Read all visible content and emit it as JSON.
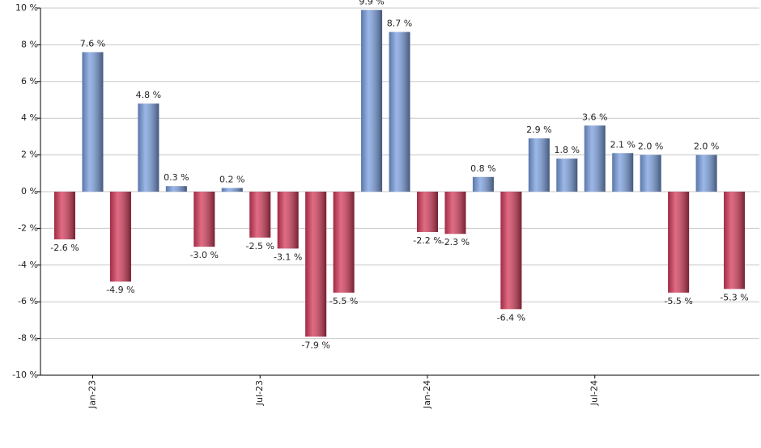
{
  "chart_data": {
    "type": "bar",
    "categories": [
      null,
      "Jan-23",
      null,
      null,
      null,
      null,
      null,
      "Jul-23",
      null,
      null,
      null,
      null,
      null,
      "Jan-24",
      null,
      null,
      null,
      null,
      null,
      "Jul-24",
      null,
      null,
      null,
      null,
      null
    ],
    "values": [
      -2.6,
      7.6,
      -4.9,
      4.8,
      0.3,
      -3.0,
      0.2,
      -2.5,
      -3.1,
      -7.9,
      -5.5,
      9.9,
      8.7,
      -2.2,
      -2.3,
      0.8,
      -6.4,
      2.9,
      1.8,
      3.6,
      2.1,
      2.0,
      -5.5,
      2.0,
      -5.3
    ],
    "value_labels": [
      "-2.6 %",
      "7.6 %",
      "-4.9 %",
      "4.8 %",
      "0.3 %",
      "-3.0 %",
      "0.2 %",
      "-2.5 %",
      "-3.1 %",
      "-7.9 %",
      "-5.5 %",
      "9.9 %",
      "8.7 %",
      "-2.2 %",
      "-2.3 %",
      "0.8 %",
      "-6.4 %",
      "2.9 %",
      "1.8 %",
      "3.6 %",
      "2.1 %",
      "2.0 %",
      "-5.5 %",
      "2.0 %",
      "-5.3 %"
    ],
    "positive_color": "#7a9fe0",
    "negative_color": "#d43a5a",
    "ylim": [
      -10,
      10
    ],
    "yticks": [
      {
        "value": -10,
        "label": "-10 %"
      },
      {
        "value": -8,
        "label": "-8 %"
      },
      {
        "value": -6,
        "label": "-6 %"
      },
      {
        "value": -4,
        "label": "-4 %"
      },
      {
        "value": -2,
        "label": "-2 %"
      },
      {
        "value": 0,
        "label": "0 %"
      },
      {
        "value": 2,
        "label": "2 %"
      },
      {
        "value": 4,
        "label": "4 %"
      },
      {
        "value": 6,
        "label": "6 %"
      },
      {
        "value": 8,
        "label": "8 %"
      },
      {
        "value": 10,
        "label": "10 %"
      }
    ],
    "grid": true
  }
}
